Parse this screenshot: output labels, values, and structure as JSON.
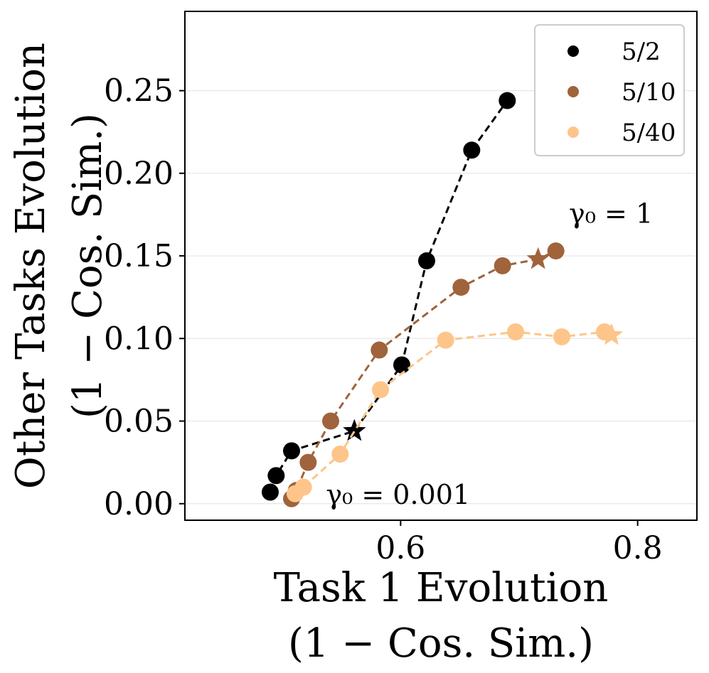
{
  "chart_data": {
    "type": "line",
    "xlabel": "Task 1 Evolution",
    "xlabel_sub": "(1 − Cos. Sim.)",
    "ylabel": "Other Tasks Evolution",
    "ylabel_sub": "(1 − Cos. Sim.)",
    "xlim": [
      0.418,
      0.85
    ],
    "ylim": [
      -0.01,
      0.298
    ],
    "x_ticks": [
      0.6,
      0.8
    ],
    "x_tick_labels": [
      "0.6",
      "0.8"
    ],
    "y_ticks": [
      0.0,
      0.05,
      0.1,
      0.15,
      0.2,
      0.25
    ],
    "y_tick_labels": [
      "0.00",
      "0.05",
      "0.10",
      "0.15",
      "0.20",
      "0.25"
    ],
    "grid": "horizontal",
    "legend_position": "top-right",
    "series": [
      {
        "name": "5/2",
        "color": "#000000",
        "points": [
          [
            0.49,
            0.007
          ],
          [
            0.495,
            0.017
          ],
          [
            0.508,
            0.032
          ],
          [
            0.561,
            0.044
          ],
          [
            0.601,
            0.084
          ],
          [
            0.622,
            0.147
          ],
          [
            0.66,
            0.214
          ],
          [
            0.69,
            0.244
          ]
        ],
        "star": [
          0.561,
          0.044
        ]
      },
      {
        "name": "5/10",
        "color": "#a0633c",
        "points": [
          [
            0.508,
            0.003
          ],
          [
            0.512,
            0.008
          ],
          [
            0.522,
            0.025
          ],
          [
            0.541,
            0.05
          ],
          [
            0.582,
            0.093
          ],
          [
            0.651,
            0.131
          ],
          [
            0.686,
            0.144
          ],
          [
            0.716,
            0.148
          ],
          [
            0.731,
            0.153
          ]
        ],
        "star": [
          0.716,
          0.148
        ]
      },
      {
        "name": "5/40",
        "color": "#fdc58a",
        "points": [
          [
            0.511,
            0.006
          ],
          [
            0.518,
            0.01
          ],
          [
            0.549,
            0.03
          ],
          [
            0.583,
            0.069
          ],
          [
            0.638,
            0.099
          ],
          [
            0.697,
            0.104
          ],
          [
            0.736,
            0.101
          ],
          [
            0.772,
            0.104
          ],
          [
            0.778,
            0.102
          ]
        ],
        "star": [
          0.778,
          0.102
        ]
      }
    ],
    "annotations": [
      {
        "text": "γ₀ = 1",
        "x": 0.742,
        "y": 0.17
      },
      {
        "text": "γ₀ = 0.001",
        "x": 0.537,
        "y": 0.0
      }
    ]
  }
}
